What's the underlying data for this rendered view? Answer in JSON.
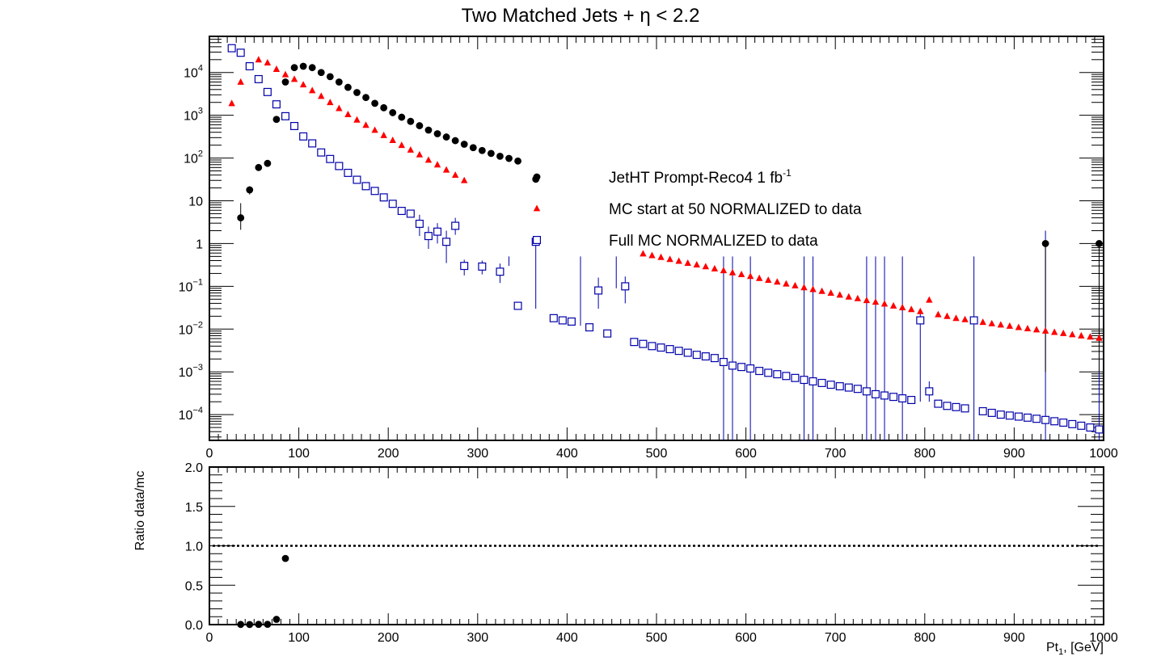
{
  "chart_data": [
    {
      "type": "scatter",
      "title": "Two Matched Jets + η < 2.2",
      "xlabel": "",
      "ylabel": "",
      "xlim": [
        0,
        1000
      ],
      "ylim": [
        2.5e-05,
        70000
      ],
      "yscale": "log",
      "x_tick_labels": [
        "0",
        "100",
        "200",
        "300",
        "400",
        "500",
        "600",
        "700",
        "800",
        "900",
        "1000"
      ],
      "y_tick_labels": [
        {
          "value": 0.0001,
          "base": "10",
          "exp": "−4"
        },
        {
          "value": 0.001,
          "base": "10",
          "exp": "−3"
        },
        {
          "value": 0.01,
          "base": "10",
          "exp": "−2"
        },
        {
          "value": 0.1,
          "base": "10",
          "exp": "−1"
        },
        {
          "value": 1,
          "base": "1",
          "exp": ""
        },
        {
          "value": 10,
          "base": "10",
          "exp": ""
        },
        {
          "value": 100,
          "base": "10",
          "exp": "2"
        },
        {
          "value": 1000,
          "base": "10",
          "exp": "3"
        },
        {
          "value": 10000,
          "base": "10",
          "exp": "4"
        }
      ],
      "legend": {
        "placement": "top-right",
        "entries": [
          {
            "series": 0,
            "text": "JetHT Prompt-Reco4 1 fb",
            "sup": "-1"
          },
          {
            "series": 1,
            "text": "MC start at 50 NORMALIZED to data",
            "sup": ""
          },
          {
            "series": 2,
            "text": "Full MC NORMALIZED to data",
            "sup": ""
          }
        ]
      },
      "series": [
        {
          "marker": "circle-filled",
          "color": "#000000",
          "x": [
            35,
            45,
            55,
            65,
            75,
            85,
            95,
            105,
            115,
            125,
            135,
            145,
            155,
            165,
            175,
            185,
            195,
            205,
            215,
            225,
            235,
            245,
            255,
            265,
            275,
            285,
            295,
            305,
            315,
            325,
            335,
            345,
            365,
            935,
            995
          ],
          "y": [
            4,
            18,
            60,
            75,
            800,
            6000,
            13000,
            14000,
            13000,
            10000,
            8000,
            6000,
            4500,
            3400,
            2600,
            1900,
            1500,
            1150,
            900,
            720,
            570,
            450,
            370,
            310,
            255,
            210,
            175,
            150,
            128,
            110,
            98,
            85,
            32,
            1,
            1
          ],
          "yerr": [
            [
              1.9,
              4.8
            ],
            [
              4,
              4
            ],
            [
              7.5,
              7.5
            ],
            [
              9,
              9
            ],
            [
              28,
              28
            ],
            [
              77,
              77
            ],
            [
              110,
              110
            ],
            [
              120,
              120
            ],
            [
              115,
              115
            ],
            [
              100,
              100
            ],
            [
              90,
              90
            ],
            [
              77,
              77
            ],
            [
              67,
              67
            ],
            [
              58,
              58
            ],
            [
              51,
              51
            ],
            [
              44,
              44
            ],
            [
              39,
              39
            ],
            [
              34,
              34
            ],
            [
              30,
              30
            ],
            [
              27,
              27
            ],
            [
              24,
              24
            ],
            [
              21,
              21
            ],
            [
              19,
              19
            ],
            [
              18,
              18
            ],
            [
              16,
              16
            ],
            [
              14,
              14
            ],
            [
              13,
              13
            ],
            [
              12,
              12
            ],
            [
              11,
              11
            ],
            [
              10,
              10
            ],
            [
              9.9,
              9.9
            ],
            [
              9.2,
              9.2
            ],
            [
              5.6,
              5.6
            ],
            [
              0.999,
              0.01
            ],
            [
              0.999,
              0.01
            ]
          ]
        },
        {
          "marker": "triangle-filled",
          "color": "#ff0000",
          "x": [
            25,
            35,
            45,
            55,
            65,
            75,
            85,
            95,
            105,
            115,
            125,
            135,
            145,
            155,
            165,
            175,
            185,
            195,
            205,
            215,
            225,
            235,
            245,
            255,
            265,
            275,
            285,
            485,
            495,
            505,
            515,
            525,
            535,
            545,
            555,
            565,
            575,
            585,
            595,
            605,
            615,
            625,
            635,
            645,
            655,
            665,
            675,
            685,
            695,
            705,
            715,
            725,
            735,
            745,
            755,
            765,
            775,
            785,
            795,
            805,
            815,
            825,
            835,
            845,
            855,
            865,
            875,
            885,
            895,
            905,
            915,
            925,
            935,
            945,
            955,
            965,
            975,
            985,
            995
          ],
          "y": [
            1900,
            6000,
            14000,
            20000,
            17000,
            12000,
            9000,
            7000,
            5200,
            3800,
            2800,
            2000,
            1450,
            1050,
            780,
            590,
            450,
            340,
            260,
            200,
            155,
            120,
            90,
            70,
            53,
            40,
            30,
            0.58,
            0.53,
            0.48,
            0.43,
            0.39,
            0.35,
            0.32,
            0.29,
            0.26,
            0.235,
            0.21,
            0.19,
            0.172,
            0.155,
            0.14,
            0.127,
            0.115,
            0.104,
            0.094,
            0.085,
            0.077,
            0.07,
            0.063,
            0.057,
            0.052,
            0.047,
            0.043,
            0.039,
            0.035,
            0.032,
            0.029,
            0.026,
            0.048,
            0.022,
            0.02,
            0.018,
            0.0168,
            0.0155,
            0.0145,
            0.0135,
            0.0126,
            0.0118,
            0.011,
            0.0103,
            0.0097,
            0.0091,
            0.0085,
            0.008,
            0.0075,
            0.007,
            0.0066,
            0.0062
          ],
          "yerr": []
        },
        {
          "marker": "square-open",
          "color": "#0000aa",
          "x": [
            25,
            35,
            45,
            55,
            65,
            75,
            85,
            95,
            105,
            115,
            125,
            135,
            145,
            155,
            165,
            175,
            185,
            195,
            205,
            215,
            225,
            235,
            245,
            255,
            265,
            275,
            285,
            305,
            325,
            345,
            365,
            385,
            395,
            405,
            425,
            435,
            445,
            465,
            475,
            485,
            495,
            505,
            515,
            525,
            535,
            545,
            555,
            565,
            575,
            585,
            595,
            605,
            615,
            625,
            635,
            645,
            655,
            665,
            675,
            685,
            695,
            705,
            715,
            725,
            735,
            745,
            755,
            765,
            775,
            785,
            795,
            805,
            815,
            825,
            835,
            845,
            855,
            865,
            875,
            885,
            895,
            905,
            915,
            925,
            935,
            945,
            955,
            965,
            975,
            985,
            995
          ],
          "y": [
            37000,
            29000,
            14000,
            7000,
            3500,
            1800,
            950,
            560,
            320,
            220,
            135,
            95,
            65,
            45,
            31,
            22,
            17,
            12,
            8.5,
            5.8,
            5,
            2.9,
            1.5,
            1.9,
            1.1,
            2.6,
            0.3,
            0.29,
            0.22,
            0.035,
            1.1,
            0.018,
            0.016,
            0.015,
            0.011,
            0.08,
            0.0079,
            0.1,
            0.005,
            0.0045,
            0.004,
            0.0037,
            0.0034,
            0.0031,
            0.0028,
            0.0025,
            0.0023,
            0.0021,
            0.0017,
            0.0014,
            0.0013,
            0.0012,
            0.00105,
            0.00095,
            0.00088,
            0.0008,
            0.00072,
            0.00065,
            0.0006,
            0.00055,
            0.0005,
            0.00046,
            0.00043,
            0.0004,
            0.00035,
            0.0003,
            0.00028,
            0.00026,
            0.00024,
            0.00022,
            0.016,
            0.00035,
            0.00018,
            0.00016,
            0.00015,
            0.00014,
            0.016,
            0.00012,
            0.00011,
            0.0001,
            9.5e-05,
            9e-05,
            8.5e-05,
            8e-05,
            7.5e-05,
            7e-05,
            6.5e-05,
            6e-05,
            5.5e-05,
            5e-05,
            4.5e-05
          ],
          "yerr": [],
          "error_bars": [
            {
              "x": 235,
              "lo": 1.5,
              "hi": 4.7
            },
            {
              "x": 245,
              "lo": 0.75,
              "hi": 2.5
            },
            {
              "x": 255,
              "lo": 1.0,
              "hi": 3.0
            },
            {
              "x": 265,
              "lo": 0.35,
              "hi": 2.0
            },
            {
              "x": 275,
              "lo": 1.6,
              "hi": 4.0
            },
            {
              "x": 285,
              "lo": 0.18,
              "hi": 0.42
            },
            {
              "x": 305,
              "lo": 0.19,
              "hi": 0.4
            },
            {
              "x": 325,
              "lo": 0.12,
              "hi": 0.34
            },
            {
              "x": 335,
              "lo": 0.3,
              "hi": 0.5
            },
            {
              "x": 365,
              "lo": 0.03,
              "hi": 1.3
            },
            {
              "x": 415,
              "lo": 0.012,
              "hi": 0.5
            },
            {
              "x": 435,
              "lo": 0.03,
              "hi": 0.16
            },
            {
              "x": 455,
              "lo": 0.09,
              "hi": 0.5
            },
            {
              "x": 465,
              "lo": 0.04,
              "hi": 0.17
            },
            {
              "x": 575,
              "lo": 2.5e-05,
              "hi": 0.5
            },
            {
              "x": 585,
              "lo": 2.5e-05,
              "hi": 0.5
            },
            {
              "x": 605,
              "lo": 2.5e-05,
              "hi": 0.5
            },
            {
              "x": 665,
              "lo": 2.5e-05,
              "hi": 0.5
            },
            {
              "x": 675,
              "lo": 2.5e-05,
              "hi": 0.5
            },
            {
              "x": 735,
              "lo": 2.5e-05,
              "hi": 0.5
            },
            {
              "x": 745,
              "lo": 2.5e-05,
              "hi": 0.5
            },
            {
              "x": 755,
              "lo": 2.5e-05,
              "hi": 0.5
            },
            {
              "x": 775,
              "lo": 2.5e-05,
              "hi": 0.5
            },
            {
              "x": 795,
              "lo": 0.0002,
              "hi": 0.03
            },
            {
              "x": 805,
              "lo": 0.0002,
              "hi": 0.0006
            },
            {
              "x": 855,
              "lo": 2.5e-05,
              "hi": 0.5
            },
            {
              "x": 935,
              "lo": 2.5e-05,
              "hi": 2.0
            },
            {
              "x": 995,
              "lo": 2.5e-05,
              "hi": 1.0
            }
          ]
        }
      ]
    },
    {
      "type": "scatter",
      "title": "",
      "xlabel": "Pt",
      "xlabel_sub": "1",
      "xlabel_unit": ", [GeV]",
      "ylabel": "Ratio data/mc",
      "xlim": [
        0,
        1000
      ],
      "ylim": [
        0,
        2
      ],
      "x_tick_labels": [
        "0",
        "100",
        "200",
        "300",
        "400",
        "500",
        "600",
        "700",
        "800",
        "900",
        "1000"
      ],
      "y_tick_labels": [
        "0.0",
        "0.5",
        "1.0",
        "1.5",
        "2.0"
      ],
      "y_tick_values": [
        0,
        0.5,
        1.0,
        1.5,
        2.0
      ],
      "reference_line": 1.0,
      "series": [
        {
          "marker": "circle-filled",
          "color": "#000000",
          "x": [
            35,
            45,
            55,
            65,
            75,
            85
          ],
          "y": [
            0.002,
            0.001,
            0.003,
            0.004,
            0.067,
            0.84
          ]
        }
      ]
    }
  ]
}
